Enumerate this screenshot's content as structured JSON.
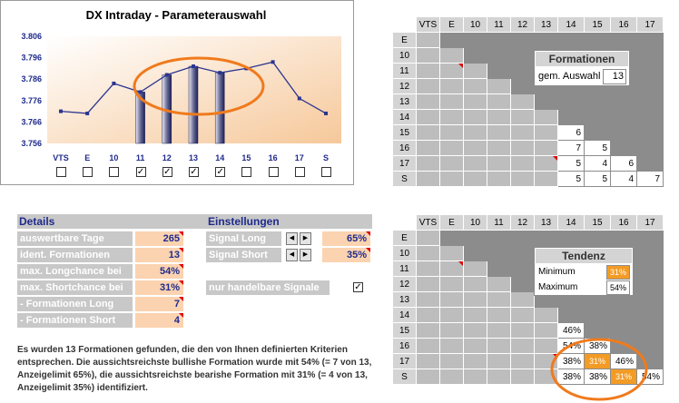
{
  "chart": {
    "title": "DX Intraday - Parameterauswahl",
    "checkboxes": [
      false,
      false,
      false,
      true,
      true,
      true,
      true,
      false,
      false,
      false,
      false
    ]
  },
  "chart_data": {
    "type": "line",
    "title": "DX Intraday - Parameterauswahl",
    "categories": [
      "VTS",
      "E",
      "10",
      "11",
      "12",
      "13",
      "14",
      "15",
      "16",
      "17",
      "S"
    ],
    "series": [
      {
        "values": [
          3.771,
          3.77,
          3.784,
          3.78,
          3.788,
          3.792,
          3.789,
          3.791,
          3.794,
          3.777,
          3.77
        ]
      }
    ],
    "highlighted_bars": [
      "11",
      "12",
      "13",
      "14"
    ],
    "yticks": [
      "3.806",
      "3.796",
      "3.786",
      "3.776",
      "3.766",
      "3.756"
    ],
    "ylim": [
      3.756,
      3.806
    ],
    "grid": false,
    "annotation": "orange ellipse around 11-14"
  },
  "grid_headers": [
    "VTS",
    "E",
    "10",
    "11",
    "12",
    "13",
    "14",
    "15",
    "16",
    "17"
  ],
  "grid_rows": [
    "E",
    "10",
    "11",
    "12",
    "13",
    "14",
    "15",
    "16",
    "17",
    "S"
  ],
  "formation_grid": {
    "title": "Formationen",
    "label": "gem. Auswahl",
    "value": "13",
    "values": [
      {
        "r": 6,
        "c": 7,
        "v": "6"
      },
      {
        "r": 7,
        "c": 7,
        "v": "7"
      },
      {
        "r": 7,
        "c": 8,
        "v": "5"
      },
      {
        "r": 8,
        "c": 7,
        "v": "5"
      },
      {
        "r": 8,
        "c": 8,
        "v": "4"
      },
      {
        "r": 8,
        "c": 9,
        "v": "6"
      },
      {
        "r": 9,
        "c": 7,
        "v": "5"
      },
      {
        "r": 9,
        "c": 8,
        "v": "5"
      },
      {
        "r": 9,
        "c": 9,
        "v": "4"
      },
      {
        "r": 9,
        "c": 10,
        "v": "7"
      }
    ]
  },
  "tendenz_grid": {
    "title": "Tendenz",
    "min_label": "Minimum",
    "min_value": "31%",
    "max_label": "Maximum",
    "max_value": "54%",
    "values": [
      {
        "r": 6,
        "c": 7,
        "v": "46%",
        "o": false
      },
      {
        "r": 7,
        "c": 7,
        "v": "54%",
        "o": false
      },
      {
        "r": 7,
        "c": 8,
        "v": "38%",
        "o": false
      },
      {
        "r": 8,
        "c": 7,
        "v": "38%",
        "o": false
      },
      {
        "r": 8,
        "c": 8,
        "v": "31%",
        "o": true
      },
      {
        "r": 8,
        "c": 9,
        "v": "46%",
        "o": false
      },
      {
        "r": 9,
        "c": 7,
        "v": "38%",
        "o": false
      },
      {
        "r": 9,
        "c": 8,
        "v": "38%",
        "o": false
      },
      {
        "r": 9,
        "c": 9,
        "v": "31%",
        "o": true
      },
      {
        "r": 9,
        "c": 10,
        "v": "54%",
        "o": false
      }
    ]
  },
  "details": {
    "title": "Details",
    "rows": [
      {
        "label": "auswertbare Tage",
        "value": "265"
      },
      {
        "label": "ident. Formationen",
        "value": "13"
      },
      {
        "label": "max. Longchance bei",
        "value": "54%"
      },
      {
        "label": "max. Shortchance bei",
        "value": "31%"
      },
      {
        "label": "- Formationen Long",
        "value": "7"
      },
      {
        "label": "- Formationen Short",
        "value": "4"
      }
    ]
  },
  "settings": {
    "title": "Einstellungen",
    "signal_long_label": "Signal Long",
    "signal_long_value": "65%",
    "signal_short_label": "Signal Short",
    "signal_short_value": "35%",
    "tradable_label": "nur handelbare Signale",
    "tradable_checked": true
  },
  "summary": "Es wurden 13 Formationen gefunden, die den von Ihnen definierten Kriterien entsprechen. Die aussichtsreichste bullishe Formation wurde mit 54% (= 7 von 13, Anzeigelimit 65%), die aussichtsreichste bearishe Formation mit 31% (= 4 von 13, Anzeigelimit 35%) identifiziert.",
  "colors": {
    "accent_orange": "#f29b25",
    "ellipse": "#f07a1c",
    "line": "#2b3590",
    "label_blue": "#1f2a8c"
  }
}
